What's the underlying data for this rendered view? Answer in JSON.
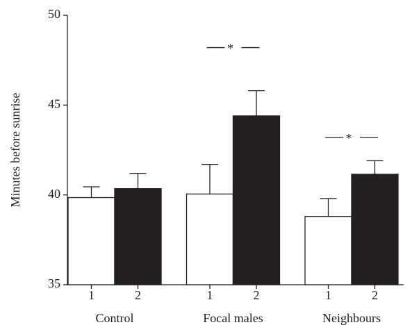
{
  "chart_data": {
    "type": "bar",
    "ylabel": "Minutes before sunrise",
    "categories": [
      "Control",
      "Focal males",
      "Neighbours"
    ],
    "series": [
      {
        "name": "1",
        "color": "#ffffff",
        "values": [
          39.85,
          40.05,
          38.8
        ],
        "errors": [
          0.6,
          1.65,
          1.0
        ]
      },
      {
        "name": "2",
        "color": "#231f20",
        "values": [
          40.35,
          44.4,
          41.15
        ],
        "errors": [
          0.85,
          1.4,
          0.75
        ]
      }
    ],
    "ylim": [
      35,
      50
    ],
    "yticks": [
      35,
      40,
      45,
      50
    ],
    "annotations": [
      {
        "text": "*",
        "category": 1,
        "y": 48.2
      },
      {
        "text": "*",
        "category": 2,
        "y": 43.2
      }
    ]
  }
}
